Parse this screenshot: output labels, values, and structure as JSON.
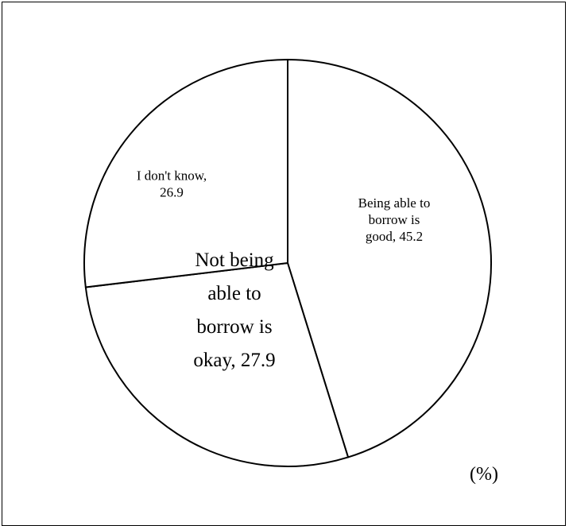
{
  "chart_data": {
    "type": "pie",
    "unit_label": "(%)",
    "slices": [
      {
        "label_lines": [
          "Being able to",
          "borrow is",
          "good, 45.2"
        ],
        "value": 45.2
      },
      {
        "label_lines": [
          "Not being",
          "able to",
          "borrow is",
          "okay, 27.9"
        ],
        "value": 27.9
      },
      {
        "label_lines": [
          "I don't know,",
          "26.9"
        ],
        "value": 26.9
      }
    ],
    "colors": {
      "fill": "#ffffff",
      "stroke": "#000000"
    }
  }
}
